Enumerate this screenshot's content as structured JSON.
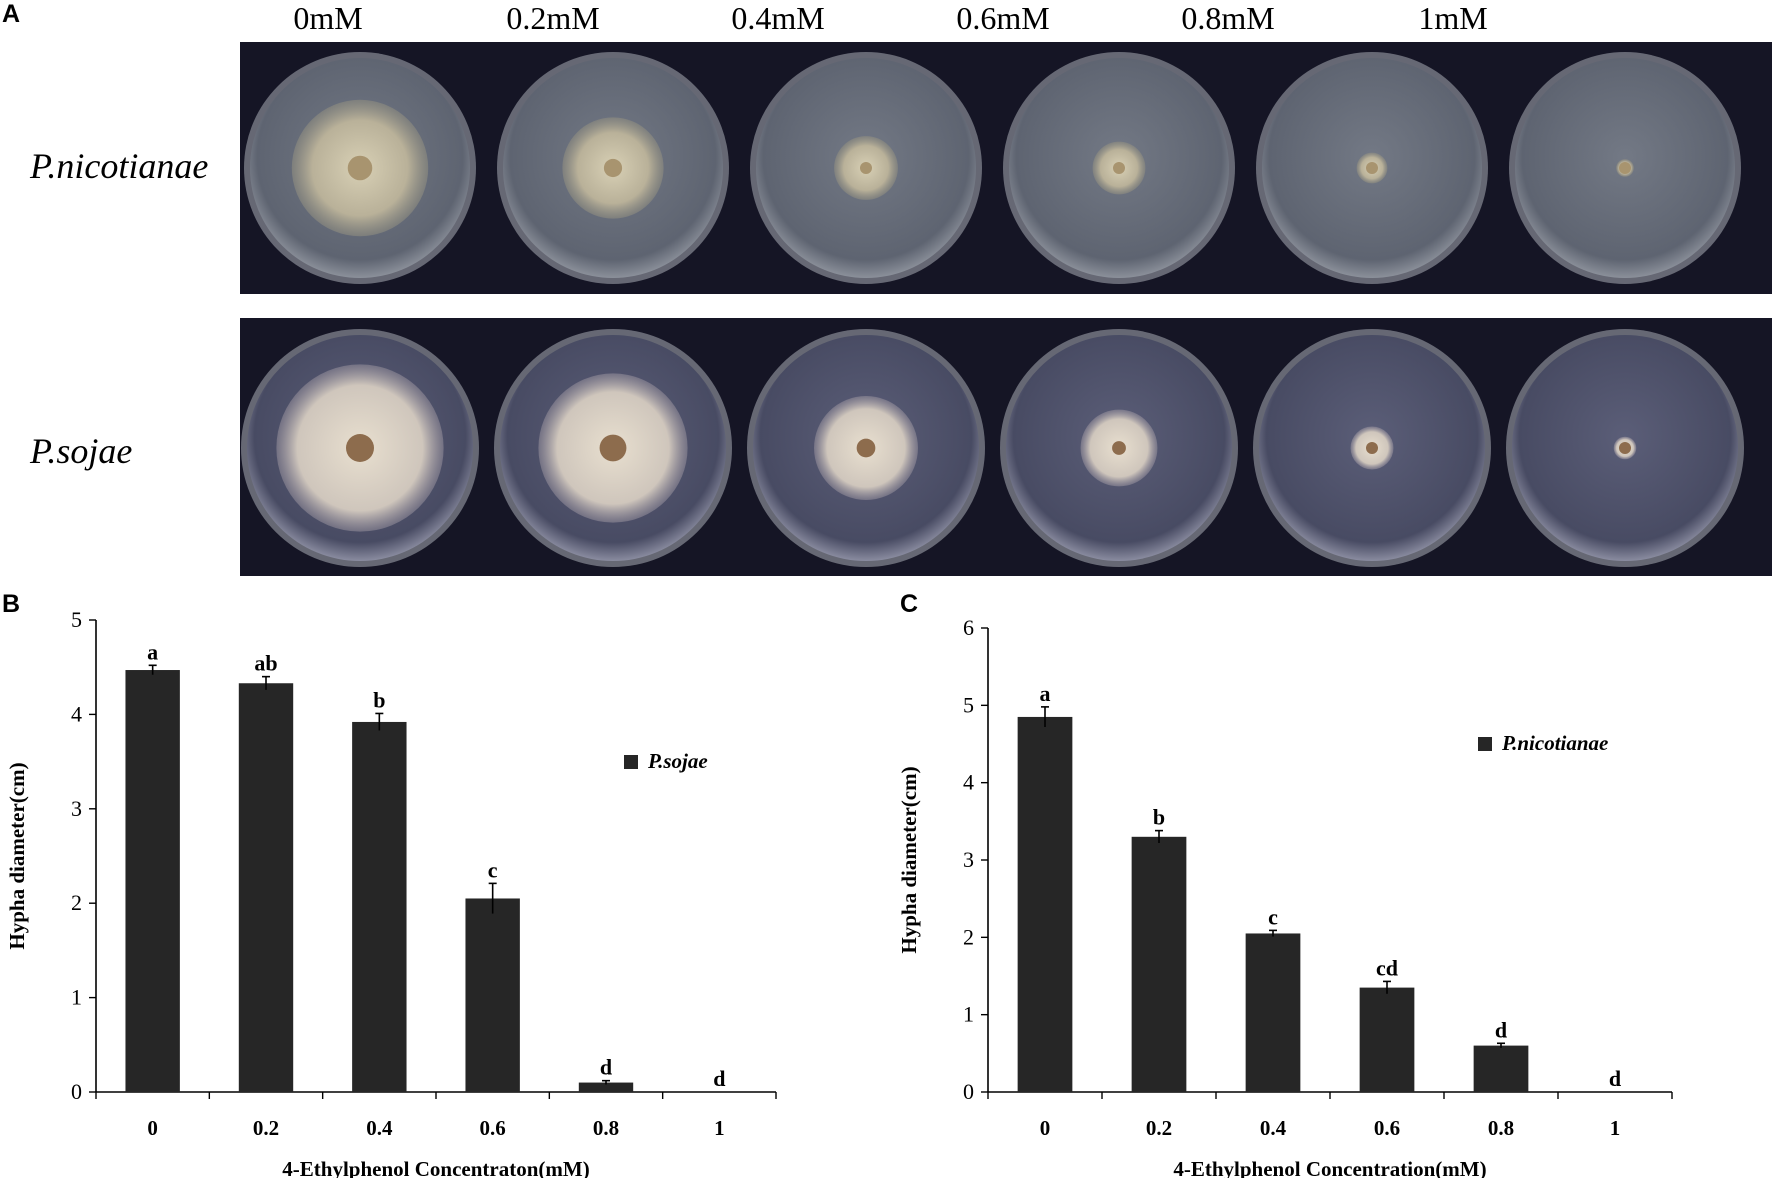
{
  "panel_a": {
    "letter": "A",
    "concentrations": [
      "0mM",
      "0.2mM",
      "0.4mM",
      "0.6mM",
      "0.8mM",
      "1mM"
    ],
    "rows": [
      {
        "species": "P.nicotianae",
        "colony_size": [
          0.62,
          0.46,
          0.29,
          0.24,
          0.14,
          0.08
        ],
        "colors": {
          "dish": "#5e6471",
          "colony": "#b9b199",
          "center": "#a8946f"
        }
      },
      {
        "species": "P.sojae",
        "colony_size": [
          0.74,
          0.66,
          0.46,
          0.34,
          0.19,
          0.1
        ],
        "colors": {
          "dish": "#484b63",
          "colony": "#cfc6bc",
          "center": "#8d6c4d"
        }
      }
    ]
  },
  "chart_data": [
    {
      "type": "bar",
      "panel": "B",
      "categories": [
        "0",
        "0.2",
        "0.4",
        "0.6",
        "0.8",
        "1"
      ],
      "series": [
        {
          "name": "P.sojae",
          "values": [
            4.47,
            4.33,
            3.92,
            2.05,
            0.1,
            0
          ],
          "errors": [
            0.05,
            0.07,
            0.09,
            0.16,
            0.02,
            0
          ]
        }
      ],
      "significance": [
        "a",
        "ab",
        "b",
        "c",
        "d",
        "d"
      ],
      "ylabel": "Hypha diameter(cm)",
      "xlabel": "4-Ethylphenol Concentraton(mM)",
      "ylim": [
        0,
        5
      ],
      "yticks": [
        0,
        1,
        2,
        3,
        4,
        5
      ],
      "legend": "right",
      "bar_color": "#262626"
    },
    {
      "type": "bar",
      "panel": "C",
      "categories": [
        "0",
        "0.2",
        "0.4",
        "0.6",
        "0.8",
        "1"
      ],
      "series": [
        {
          "name": "P.nicotianae",
          "values": [
            4.85,
            3.3,
            2.05,
            1.35,
            0.6,
            0
          ],
          "errors": [
            0.13,
            0.08,
            0.04,
            0.08,
            0.03,
            0
          ]
        }
      ],
      "significance": [
        "a",
        "b",
        "c",
        "cd",
        "d",
        "d"
      ],
      "ylabel": "Hypha diameter(cm)",
      "xlabel": "4-Ethylphenol Concentration(mM)",
      "ylim": [
        0,
        6
      ],
      "yticks": [
        0,
        1,
        2,
        3,
        4,
        5,
        6
      ],
      "legend": "right",
      "bar_color": "#262626"
    }
  ]
}
